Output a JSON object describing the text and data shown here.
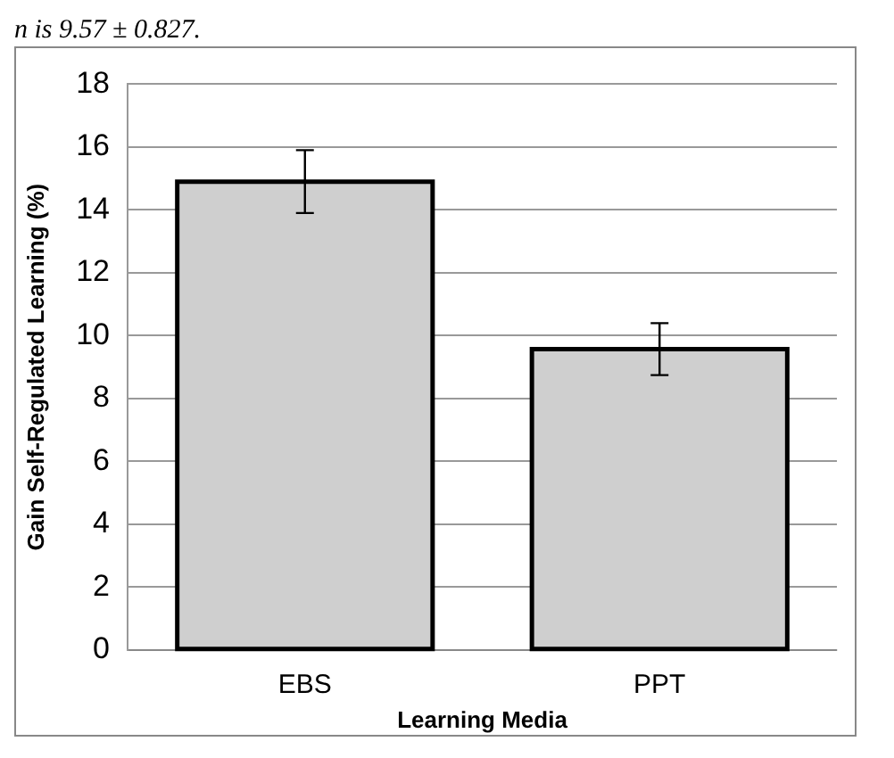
{
  "chart_data": {
    "type": "bar",
    "xlabel": "Learning Media",
    "ylabel": "Gain Self-Regulated Learning (%)",
    "annotations": [
      "n is 9.57 ± 0.827."
    ],
    "categories": [
      "EBS",
      "PPT"
    ],
    "values": [
      14.9,
      9.57
    ],
    "errors": [
      1.0,
      0.827
    ],
    "color": "#cfcfcf",
    "ylim": [
      0,
      18
    ],
    "yticks": [
      0,
      2,
      4,
      6,
      8,
      10,
      12,
      14,
      16,
      18
    ],
    "grid": "y",
    "legend": false
  }
}
